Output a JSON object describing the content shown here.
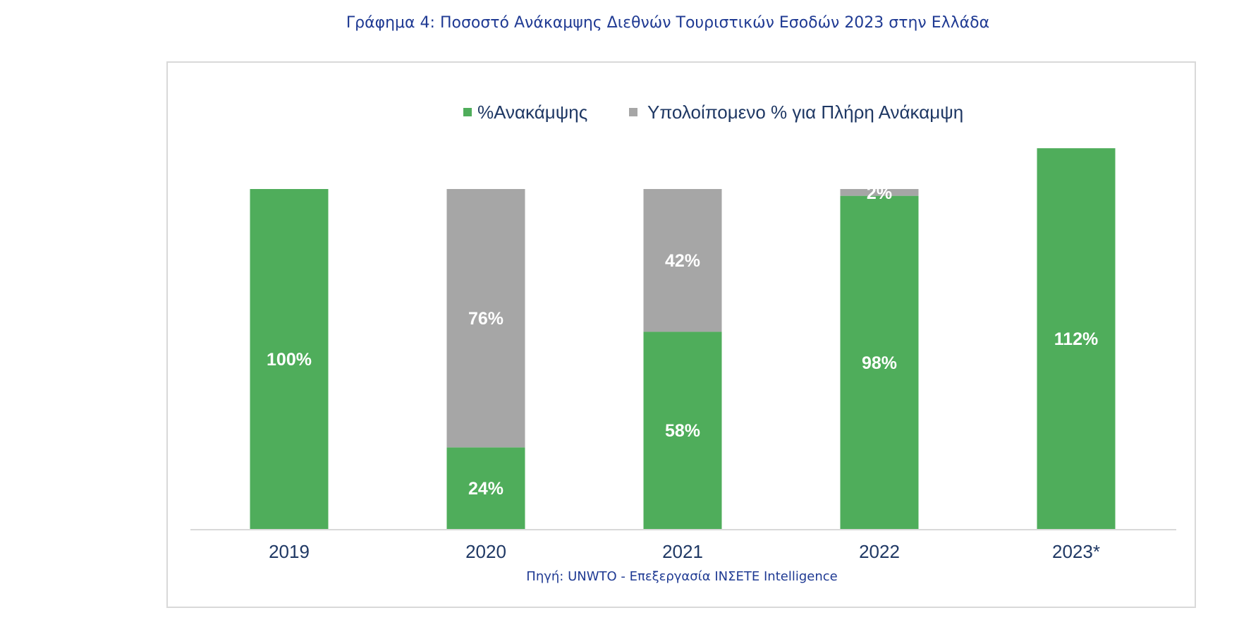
{
  "title": "Γράφημα 4: Ποσοστό Ανάκαμψης Διεθνών Τουριστικών Εσοδών 2023 στην Ελλάδα",
  "source": "Πηγή: UNWTO - Επεξεργασία ΙΝΣΕΤΕ Intelligence",
  "chart_data": {
    "type": "bar",
    "stacked": true,
    "categories": [
      "2019",
      "2020",
      "2021",
      "2022",
      "2023*"
    ],
    "series": [
      {
        "name": "%Ανακάμψης",
        "values": [
          100,
          24,
          58,
          98,
          112
        ],
        "labels": [
          "100%",
          "24%",
          "58%",
          "98%",
          "112%"
        ],
        "color": "#4fad5b"
      },
      {
        "name": "Υπολοίπομενο % για Πλήρη Ανάκαμψη",
        "values": [
          0,
          76,
          42,
          2,
          0
        ],
        "labels": [
          "",
          "76%",
          "42%",
          "2%",
          ""
        ],
        "color": "#a6a6a6"
      }
    ],
    "ylim": [
      0,
      112
    ],
    "legend": "top-center",
    "grid": false
  }
}
